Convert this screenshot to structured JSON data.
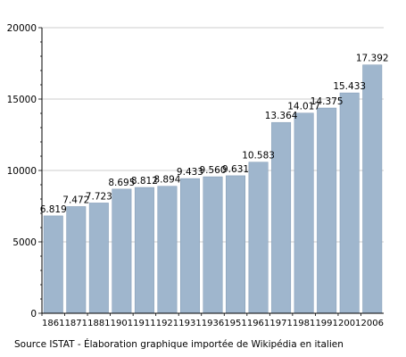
{
  "chart_data": {
    "type": "bar",
    "categories": [
      "1861",
      "1871",
      "1881",
      "1901",
      "1911",
      "1921",
      "1931",
      "1936",
      "1951",
      "1961",
      "1971",
      "1981",
      "1991",
      "2001",
      "2006"
    ],
    "values": [
      6819,
      7472,
      7723,
      8695,
      8812,
      8894,
      9433,
      9560,
      9631,
      10583,
      13364,
      14017,
      14375,
      15433,
      17392
    ],
    "value_labels": [
      "6.819",
      "7.472",
      "7.723",
      "8.695",
      "8.812",
      "8.894",
      "9.433",
      "9.560",
      "9.631",
      "10.583",
      "13.364",
      "14.017",
      "14.375",
      "15.433",
      "17.392"
    ],
    "y_ticks": [
      "0",
      "5000",
      "10000",
      "15000",
      "20000"
    ],
    "ylim": [
      0,
      20000
    ],
    "grid": "horizontal",
    "bar_color": "#9fb6cd",
    "bar_edge_color": "#7f98b3",
    "grid_color": "#cccccc",
    "title": "",
    "xlabel": "",
    "ylabel": ""
  },
  "footer": {
    "source": "Source ISTAT - Élaboration graphique importée de Wikipédia en italien"
  }
}
